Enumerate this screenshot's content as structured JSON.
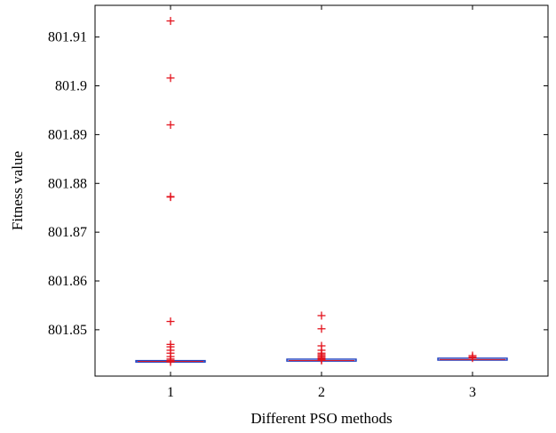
{
  "chart_data": {
    "type": "box",
    "xlabel": "Different PSO methods",
    "ylabel": "Fitness value",
    "categories": [
      "1",
      "2",
      "3"
    ],
    "ylim": [
      801.8405,
      801.9165
    ],
    "y_ticks": [
      801.85,
      801.86,
      801.87,
      801.88,
      801.89,
      801.9,
      801.91
    ],
    "y_tick_labels": [
      "801.85",
      "801.86",
      "801.87",
      "801.88",
      "801.89",
      "801.9",
      "801.91"
    ],
    "grid": false,
    "colors": {
      "box": "#1f3fbf",
      "median": "#d81e2a",
      "outlier": "#e3131d",
      "axis": "#000000"
    },
    "boxes": [
      {
        "category": "1",
        "q1": 801.8434,
        "median": 801.8435,
        "q3": 801.8436,
        "whisker_low": 801.8433,
        "whisker_high": 801.8437,
        "outliers": [
          801.9133,
          801.9016,
          801.892,
          801.8773,
          801.8772,
          801.8517,
          801.847,
          801.8465,
          801.8458,
          801.8452,
          801.8445,
          801.844,
          801.8437,
          801.8434
        ]
      },
      {
        "category": "2",
        "q1": 801.8435,
        "median": 801.8437,
        "q3": 801.8439,
        "whisker_low": 801.8434,
        "whisker_high": 801.844,
        "outliers": [
          801.8529,
          801.8502,
          801.8467,
          801.8458,
          801.8452,
          801.8449,
          801.8446,
          801.8443,
          801.8441,
          801.8439,
          801.8437
        ]
      },
      {
        "category": "3",
        "q1": 801.8437,
        "median": 801.8439,
        "q3": 801.8441,
        "whisker_low": 801.8436,
        "whisker_high": 801.8442,
        "outliers": [
          801.8447,
          801.8444,
          801.8442
        ]
      }
    ]
  }
}
